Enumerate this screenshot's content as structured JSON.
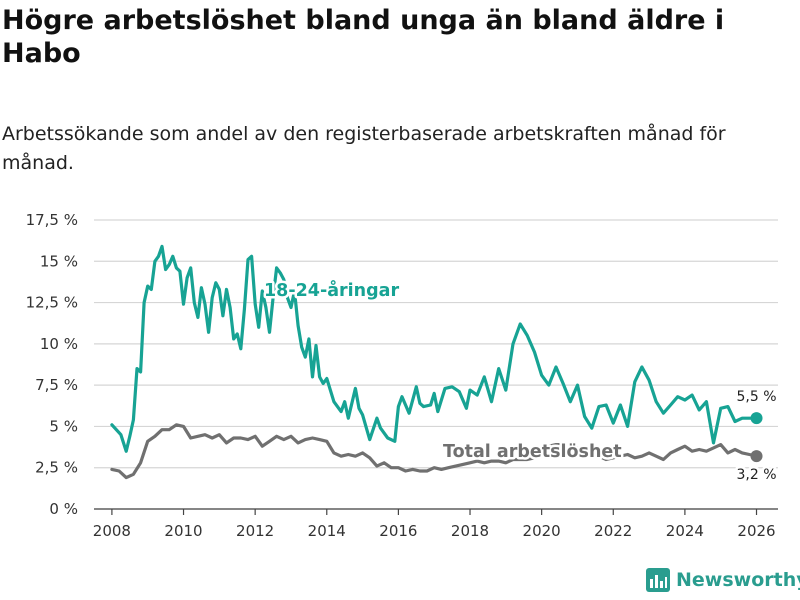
{
  "title": "Högre arbetslöshet bland unga än bland äldre i Habo",
  "subtitle": "Arbetssökande som andel av den registerbaserade arbetskraften månad för månad.",
  "brand": "Newsworthy",
  "colors": {
    "youth": "#17a394",
    "total": "#707070",
    "grid": "#d6d6d6",
    "brand": "#2a9d8f"
  },
  "chart_data": {
    "type": "line",
    "title": "Högre arbetslöshet bland unga än bland äldre i Habo",
    "subtitle": "Arbetssökande som andel av den registerbaserade arbetskraften månad för månad.",
    "xlabel": "",
    "ylabel": "",
    "xlim": [
      2007.5,
      2026.6
    ],
    "ylim": [
      0,
      17.5
    ],
    "y_ticks": [
      0,
      2.5,
      5,
      7.5,
      10,
      12.5,
      15,
      17.5
    ],
    "y_tick_labels": [
      "0 %",
      "2,5 %",
      "5 %",
      "7,5 %",
      "10 %",
      "12,5 %",
      "15 %",
      "17,5 %"
    ],
    "x_ticks": [
      2008,
      2010,
      2012,
      2014,
      2016,
      2018,
      2020,
      2022,
      2024,
      2026
    ],
    "x_tick_labels": [
      "2008",
      "2010",
      "2012",
      "2014",
      "2016",
      "2018",
      "2020",
      "2022",
      "2024",
      "2026"
    ],
    "grid": true,
    "series": [
      {
        "name": "18-24-åringar",
        "label": "18-24-åringar",
        "color": "#17a394",
        "end_label": "5,5 %",
        "x": [
          2008.0,
          2008.25,
          2008.4,
          2008.5,
          2008.6,
          2008.7,
          2008.8,
          2008.9,
          2009.0,
          2009.1,
          2009.2,
          2009.3,
          2009.4,
          2009.5,
          2009.6,
          2009.7,
          2009.8,
          2009.9,
          2010.0,
          2010.1,
          2010.2,
          2010.3,
          2010.4,
          2010.5,
          2010.6,
          2010.7,
          2010.8,
          2010.9,
          2011.0,
          2011.1,
          2011.2,
          2011.3,
          2011.4,
          2011.5,
          2011.6,
          2011.7,
          2011.8,
          2011.9,
          2012.0,
          2012.1,
          2012.2,
          2012.3,
          2012.4,
          2012.5,
          2012.6,
          2012.7,
          2012.8,
          2012.9,
          2013.0,
          2013.1,
          2013.2,
          2013.3,
          2013.4,
          2013.5,
          2013.6,
          2013.7,
          2013.8,
          2013.9,
          2014.0,
          2014.2,
          2014.4,
          2014.5,
          2014.6,
          2014.8,
          2014.9,
          2015.0,
          2015.2,
          2015.4,
          2015.5,
          2015.7,
          2015.9,
          2016.0,
          2016.1,
          2016.3,
          2016.5,
          2016.6,
          2016.7,
          2016.9,
          2017.0,
          2017.1,
          2017.3,
          2017.5,
          2017.7,
          2017.9,
          2018.0,
          2018.2,
          2018.4,
          2018.6,
          2018.8,
          2019.0,
          2019.2,
          2019.4,
          2019.6,
          2019.8,
          2020.0,
          2020.2,
          2020.4,
          2020.6,
          2020.8,
          2021.0,
          2021.2,
          2021.4,
          2021.6,
          2021.8,
          2022.0,
          2022.2,
          2022.4,
          2022.6,
          2022.8,
          2023.0,
          2023.2,
          2023.4,
          2023.6,
          2023.8,
          2024.0,
          2024.2,
          2024.4,
          2024.6,
          2024.8,
          2025.0,
          2025.2,
          2025.4,
          2025.6,
          2025.8,
          2026.0
        ],
        "values": [
          5.1,
          4.5,
          3.5,
          4.4,
          5.4,
          8.5,
          8.3,
          12.5,
          13.5,
          13.3,
          15.0,
          15.3,
          15.9,
          14.5,
          14.8,
          15.3,
          14.6,
          14.4,
          12.4,
          14.0,
          14.6,
          12.5,
          11.6,
          13.4,
          12.4,
          10.7,
          12.8,
          13.7,
          13.3,
          11.7,
          13.3,
          12.2,
          10.3,
          10.6,
          9.7,
          12.1,
          15.1,
          15.3,
          12.4,
          11.0,
          13.2,
          12.2,
          10.7,
          12.8,
          14.6,
          14.3,
          13.9,
          12.8,
          12.2,
          13.2,
          11.1,
          9.8,
          9.2,
          10.3,
          8.0,
          9.9,
          8.0,
          7.6,
          7.9,
          6.5,
          5.9,
          6.5,
          5.5,
          7.3,
          6.1,
          5.7,
          4.2,
          5.5,
          4.9,
          4.3,
          4.1,
          6.2,
          6.8,
          5.8,
          7.4,
          6.4,
          6.2,
          6.3,
          7.0,
          5.9,
          7.3,
          7.4,
          7.1,
          6.1,
          7.2,
          6.9,
          8.0,
          6.5,
          8.5,
          7.2,
          10.0,
          11.2,
          10.5,
          9.5,
          8.1,
          7.5,
          8.6,
          7.6,
          6.5,
          7.5,
          5.6,
          4.9,
          6.2,
          6.3,
          5.2,
          6.3,
          5.0,
          7.7,
          8.6,
          7.8,
          6.5,
          5.8,
          6.3,
          6.8,
          6.6,
          6.9,
          6.0,
          6.5,
          4.0,
          6.1,
          6.2,
          5.3,
          5.5,
          5.5,
          5.5
        ]
      },
      {
        "name": "Total arbetslöshet",
        "label": "Total arbetslöshet",
        "color": "#707070",
        "end_label": "3,2 %",
        "x": [
          2008.0,
          2008.2,
          2008.4,
          2008.6,
          2008.8,
          2009.0,
          2009.2,
          2009.4,
          2009.6,
          2009.8,
          2010.0,
          2010.2,
          2010.4,
          2010.6,
          2010.8,
          2011.0,
          2011.2,
          2011.4,
          2011.6,
          2011.8,
          2012.0,
          2012.2,
          2012.4,
          2012.6,
          2012.8,
          2013.0,
          2013.2,
          2013.4,
          2013.6,
          2013.8,
          2014.0,
          2014.2,
          2014.4,
          2014.6,
          2014.8,
          2015.0,
          2015.2,
          2015.4,
          2015.6,
          2015.8,
          2016.0,
          2016.2,
          2016.4,
          2016.6,
          2016.8,
          2017.0,
          2017.2,
          2017.4,
          2017.6,
          2017.8,
          2018.0,
          2018.2,
          2018.4,
          2018.6,
          2018.8,
          2019.0,
          2019.2,
          2019.4,
          2019.6,
          2019.8,
          2020.0,
          2020.2,
          2020.4,
          2020.6,
          2020.8,
          2021.0,
          2021.2,
          2021.4,
          2021.6,
          2021.8,
          2022.0,
          2022.2,
          2022.4,
          2022.6,
          2022.8,
          2023.0,
          2023.2,
          2023.4,
          2023.6,
          2023.8,
          2024.0,
          2024.2,
          2024.4,
          2024.6,
          2024.8,
          2025.0,
          2025.2,
          2025.4,
          2025.6,
          2025.8,
          2026.0
        ],
        "values": [
          2.4,
          2.3,
          1.9,
          2.1,
          2.8,
          4.1,
          4.4,
          4.8,
          4.8,
          5.1,
          5.0,
          4.3,
          4.4,
          4.5,
          4.3,
          4.5,
          4.0,
          4.3,
          4.3,
          4.2,
          4.4,
          3.8,
          4.1,
          4.4,
          4.2,
          4.4,
          4.0,
          4.2,
          4.3,
          4.2,
          4.1,
          3.4,
          3.2,
          3.3,
          3.2,
          3.4,
          3.1,
          2.6,
          2.8,
          2.5,
          2.5,
          2.3,
          2.4,
          2.3,
          2.3,
          2.5,
          2.4,
          2.5,
          2.6,
          2.7,
          2.8,
          2.9,
          2.8,
          2.9,
          2.9,
          2.8,
          3.0,
          3.0,
          3.0,
          3.1,
          3.5,
          3.8,
          3.9,
          3.9,
          3.8,
          3.7,
          3.5,
          3.3,
          3.2,
          3.0,
          3.1,
          3.2,
          3.3,
          3.1,
          3.2,
          3.4,
          3.2,
          3.0,
          3.4,
          3.6,
          3.8,
          3.5,
          3.6,
          3.5,
          3.7,
          3.9,
          3.4,
          3.6,
          3.4,
          3.3,
          3.2
        ]
      }
    ],
    "annotations": [
      {
        "text": "18-24-åringar",
        "series": 0
      },
      {
        "text": "Total arbetslöshet",
        "series": 1
      }
    ]
  }
}
